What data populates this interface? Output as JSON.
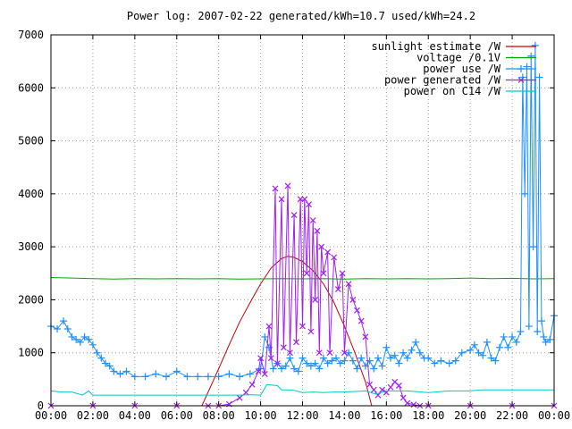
{
  "chart_data": {
    "type": "line",
    "title": "Power log: 2007-02-22 generated/kWh=10.7 used/kWh=24.2",
    "xlabel": "",
    "ylabel": "",
    "xlim": [
      0,
      24
    ],
    "ylim": [
      0,
      7000
    ],
    "grid": true,
    "legend_position": "top-right",
    "x_ticks": [
      "00:00",
      "02:00",
      "04:00",
      "06:00",
      "08:00",
      "10:00",
      "12:00",
      "14:00",
      "16:00",
      "18:00",
      "20:00",
      "22:00",
      "00:00"
    ],
    "y_ticks": [
      0,
      1000,
      2000,
      3000,
      4000,
      5000,
      6000,
      7000
    ],
    "series": [
      {
        "name": "sunlight estimate /W",
        "color": "#cc0000",
        "marker": "none",
        "points": [
          [
            7.2,
            0
          ],
          [
            7.6,
            350
          ],
          [
            8.0,
            700
          ],
          [
            8.5,
            1150
          ],
          [
            9.0,
            1580
          ],
          [
            9.5,
            1950
          ],
          [
            10.0,
            2300
          ],
          [
            10.5,
            2600
          ],
          [
            11.0,
            2780
          ],
          [
            11.3,
            2820
          ],
          [
            11.6,
            2800
          ],
          [
            12.0,
            2720
          ],
          [
            12.5,
            2550
          ],
          [
            13.0,
            2300
          ],
          [
            13.5,
            1950
          ],
          [
            14.0,
            1500
          ],
          [
            14.5,
            1000
          ],
          [
            15.0,
            450
          ],
          [
            15.3,
            0
          ]
        ]
      },
      {
        "name": "voltage /0.1V",
        "color": "#00aa00",
        "marker": "none",
        "points": [
          [
            0,
            2420
          ],
          [
            1,
            2410
          ],
          [
            2,
            2400
          ],
          [
            3,
            2390
          ],
          [
            4,
            2400
          ],
          [
            5,
            2395
          ],
          [
            6,
            2400
          ],
          [
            7,
            2395
          ],
          [
            8,
            2400
          ],
          [
            9,
            2390
          ],
          [
            10,
            2395
          ],
          [
            11,
            2400
          ],
          [
            12,
            2395
          ],
          [
            13,
            2400
          ],
          [
            14,
            2390
          ],
          [
            15,
            2400
          ],
          [
            16,
            2395
          ],
          [
            17,
            2400
          ],
          [
            18,
            2395
          ],
          [
            19,
            2400
          ],
          [
            20,
            2410
          ],
          [
            21,
            2400
          ],
          [
            22,
            2405
          ],
          [
            23,
            2395
          ],
          [
            24,
            2400
          ]
        ]
      },
      {
        "name": "power use /W",
        "color": "#1e90ff",
        "marker": "plus",
        "points": [
          [
            0,
            1500
          ],
          [
            0.3,
            1450
          ],
          [
            0.6,
            1600
          ],
          [
            0.8,
            1450
          ],
          [
            1.0,
            1300
          ],
          [
            1.2,
            1250
          ],
          [
            1.4,
            1200
          ],
          [
            1.6,
            1300
          ],
          [
            1.8,
            1250
          ],
          [
            2.0,
            1150
          ],
          [
            2.2,
            1000
          ],
          [
            2.4,
            900
          ],
          [
            2.6,
            800
          ],
          [
            2.8,
            750
          ],
          [
            3.0,
            650
          ],
          [
            3.3,
            600
          ],
          [
            3.6,
            650
          ],
          [
            4.0,
            550
          ],
          [
            4.5,
            550
          ],
          [
            5.0,
            600
          ],
          [
            5.5,
            550
          ],
          [
            6.0,
            650
          ],
          [
            6.5,
            550
          ],
          [
            7.0,
            550
          ],
          [
            7.5,
            550
          ],
          [
            8.0,
            550
          ],
          [
            8.5,
            600
          ],
          [
            9.0,
            550
          ],
          [
            9.5,
            600
          ],
          [
            10.0,
            700
          ],
          [
            10.2,
            1300
          ],
          [
            10.4,
            1100
          ],
          [
            10.6,
            700
          ],
          [
            10.8,
            800
          ],
          [
            11.0,
            700
          ],
          [
            11.2,
            750
          ],
          [
            11.4,
            900
          ],
          [
            11.6,
            700
          ],
          [
            11.8,
            650
          ],
          [
            12.0,
            900
          ],
          [
            12.2,
            800
          ],
          [
            12.4,
            750
          ],
          [
            12.6,
            800
          ],
          [
            12.8,
            700
          ],
          [
            13.0,
            900
          ],
          [
            13.2,
            800
          ],
          [
            13.4,
            850
          ],
          [
            13.6,
            900
          ],
          [
            13.8,
            800
          ],
          [
            14.0,
            850
          ],
          [
            14.2,
            1000
          ],
          [
            14.4,
            850
          ],
          [
            14.6,
            700
          ],
          [
            14.8,
            900
          ],
          [
            15.0,
            750
          ],
          [
            15.2,
            850
          ],
          [
            15.4,
            700
          ],
          [
            15.6,
            900
          ],
          [
            15.8,
            750
          ],
          [
            16.0,
            1100
          ],
          [
            16.2,
            900
          ],
          [
            16.4,
            950
          ],
          [
            16.6,
            800
          ],
          [
            16.8,
            1000
          ],
          [
            17.0,
            900
          ],
          [
            17.2,
            1050
          ],
          [
            17.4,
            1200
          ],
          [
            17.6,
            1000
          ],
          [
            17.8,
            900
          ],
          [
            18.0,
            900
          ],
          [
            18.3,
            800
          ],
          [
            18.6,
            850
          ],
          [
            19.0,
            800
          ],
          [
            19.3,
            850
          ],
          [
            19.6,
            1000
          ],
          [
            20.0,
            1050
          ],
          [
            20.2,
            1150
          ],
          [
            20.4,
            1000
          ],
          [
            20.6,
            950
          ],
          [
            20.8,
            1200
          ],
          [
            21.0,
            900
          ],
          [
            21.2,
            850
          ],
          [
            21.4,
            1100
          ],
          [
            21.6,
            1300
          ],
          [
            21.8,
            1100
          ],
          [
            22.0,
            1300
          ],
          [
            22.2,
            1200
          ],
          [
            22.4,
            1400
          ],
          [
            22.5,
            6200
          ],
          [
            22.6,
            4000
          ],
          [
            22.7,
            6400
          ],
          [
            22.8,
            1500
          ],
          [
            22.9,
            6600
          ],
          [
            23.0,
            3000
          ],
          [
            23.1,
            6800
          ],
          [
            23.2,
            1400
          ],
          [
            23.3,
            6200
          ],
          [
            23.4,
            1600
          ],
          [
            23.5,
            1300
          ],
          [
            23.6,
            1200
          ],
          [
            23.8,
            1250
          ],
          [
            24.0,
            1700
          ]
        ]
      },
      {
        "name": "power generated /W",
        "color": "#a020f0",
        "marker": "cross",
        "points": [
          [
            0,
            0
          ],
          [
            2,
            0
          ],
          [
            4,
            0
          ],
          [
            6,
            0
          ],
          [
            7.5,
            0
          ],
          [
            8.0,
            0
          ],
          [
            8.5,
            30
          ],
          [
            9.0,
            150
          ],
          [
            9.3,
            250
          ],
          [
            9.6,
            400
          ],
          [
            9.9,
            650
          ],
          [
            10.0,
            900
          ],
          [
            10.2,
            600
          ],
          [
            10.4,
            1500
          ],
          [
            10.5,
            900
          ],
          [
            10.7,
            4100
          ],
          [
            10.8,
            800
          ],
          [
            11.0,
            3900
          ],
          [
            11.1,
            1100
          ],
          [
            11.3,
            4150
          ],
          [
            11.4,
            1000
          ],
          [
            11.6,
            3600
          ],
          [
            11.7,
            1200
          ],
          [
            11.9,
            3900
          ],
          [
            12.0,
            1500
          ],
          [
            12.1,
            3900
          ],
          [
            12.2,
            2500
          ],
          [
            12.3,
            3800
          ],
          [
            12.4,
            1400
          ],
          [
            12.5,
            3500
          ],
          [
            12.6,
            2000
          ],
          [
            12.7,
            3300
          ],
          [
            12.8,
            1000
          ],
          [
            12.9,
            3000
          ],
          [
            13.0,
            2500
          ],
          [
            13.2,
            2900
          ],
          [
            13.3,
            1000
          ],
          [
            13.5,
            2800
          ],
          [
            13.7,
            2200
          ],
          [
            13.9,
            2500
          ],
          [
            14.0,
            1000
          ],
          [
            14.2,
            2300
          ],
          [
            14.4,
            2000
          ],
          [
            14.6,
            1800
          ],
          [
            14.8,
            1600
          ],
          [
            15.0,
            1300
          ],
          [
            15.2,
            400
          ],
          [
            15.4,
            300
          ],
          [
            15.6,
            200
          ],
          [
            15.8,
            300
          ],
          [
            16.0,
            250
          ],
          [
            16.2,
            350
          ],
          [
            16.4,
            450
          ],
          [
            16.6,
            380
          ],
          [
            16.8,
            150
          ],
          [
            17.0,
            50
          ],
          [
            17.3,
            20
          ],
          [
            17.6,
            0
          ],
          [
            18,
            0
          ],
          [
            20,
            0
          ],
          [
            22,
            0
          ],
          [
            24,
            0
          ]
        ]
      },
      {
        "name": "power on C14 /W",
        "color": "#00c8c8",
        "marker": "none",
        "points": [
          [
            0,
            280
          ],
          [
            0.5,
            260
          ],
          [
            1.0,
            260
          ],
          [
            1.5,
            200
          ],
          [
            1.8,
            280
          ],
          [
            2.0,
            200
          ],
          [
            3.0,
            200
          ],
          [
            4.0,
            200
          ],
          [
            5.0,
            200
          ],
          [
            6.0,
            200
          ],
          [
            7.0,
            200
          ],
          [
            8.0,
            200
          ],
          [
            9.0,
            200
          ],
          [
            9.5,
            210
          ],
          [
            10.0,
            200
          ],
          [
            10.3,
            400
          ],
          [
            10.8,
            380
          ],
          [
            11.0,
            300
          ],
          [
            11.5,
            300
          ],
          [
            12.0,
            250
          ],
          [
            12.5,
            260
          ],
          [
            13.0,
            250
          ],
          [
            13.5,
            260
          ],
          [
            14.0,
            260
          ],
          [
            15.0,
            280
          ],
          [
            15.5,
            220
          ],
          [
            16.0,
            280
          ],
          [
            17.0,
            280
          ],
          [
            18.0,
            250
          ],
          [
            19.0,
            280
          ],
          [
            20.0,
            280
          ],
          [
            20.5,
            300
          ],
          [
            21.0,
            300
          ],
          [
            22.0,
            300
          ],
          [
            23.0,
            300
          ],
          [
            24.0,
            300
          ]
        ]
      }
    ]
  }
}
